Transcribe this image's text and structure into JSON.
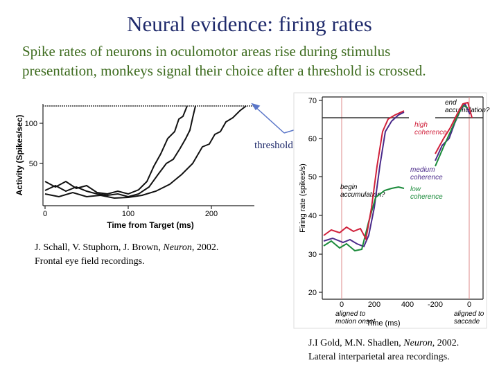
{
  "title": "Neural evidence: firing rates",
  "body": [
    "Spike rates of neurons in oculomotor areas rise during stimulus",
    "presentation, monkeys signal their choice after a threshold is crossed."
  ],
  "annotation": "thresholds",
  "left_figure": {
    "y_label": "Activity (Spikes/sec)",
    "x_label": "Time from Target (ms)",
    "yticks": [
      "100",
      "50"
    ],
    "xticks": [
      "0",
      "100",
      "200"
    ]
  },
  "left_caption": {
    "citation": [
      "J. Schall, V. Stuphorn, J. Brown, ",
      "Neuron",
      ", 2002."
    ],
    "note": "Frontal eye field recordings."
  },
  "right_figure": {
    "y_label": "Firing rate (spikes/s)",
    "x_label": "Time (ms)",
    "yticks": [
      "70",
      "60",
      "50",
      "40",
      "30",
      "20"
    ],
    "xticks": [
      "0",
      "200",
      "400",
      "-200",
      "0"
    ],
    "end_label": [
      "end",
      "accumulation?"
    ],
    "begin_label": [
      "begin",
      "accumulation?"
    ],
    "high_label": [
      "high",
      "coherence"
    ],
    "medium_label": [
      "medium",
      "coherence"
    ],
    "low_label": [
      "low",
      "coherence"
    ],
    "aligned_motion": [
      "aligned to",
      "motion onset"
    ],
    "aligned_saccade": [
      "aligned to",
      "saccade"
    ]
  },
  "right_caption": {
    "citation": [
      "J.I Gold, M.N. Shadlen, ",
      "Neuron",
      ", 2002."
    ],
    "note": "Lateral interparietal area recordings."
  }
}
